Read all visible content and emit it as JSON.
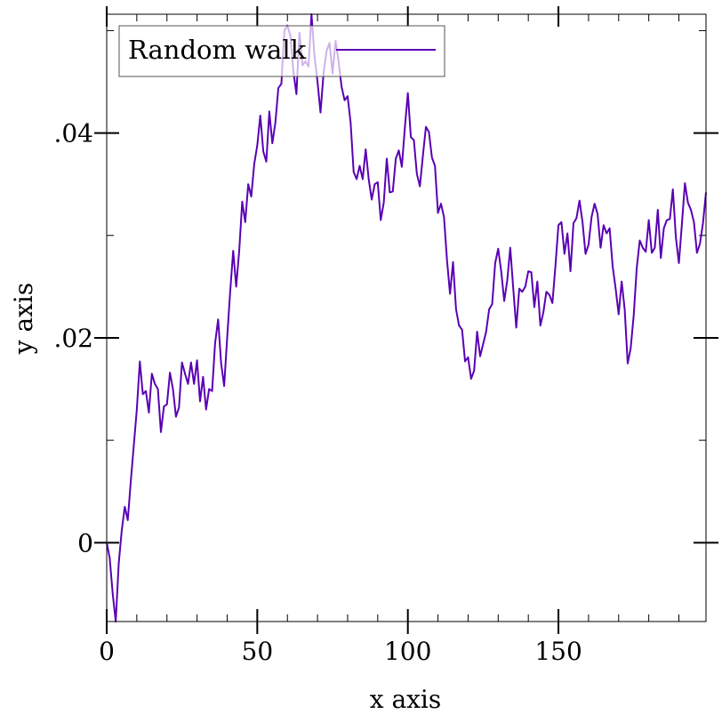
{
  "chart_data": {
    "type": "line",
    "title": "",
    "xlabel": "x axis",
    "ylabel": "y axis",
    "xlim": [
      0,
      199
    ],
    "ylim": [
      -0.0077,
      0.0516
    ],
    "grid": false,
    "legend": {
      "placement": "top-left",
      "entries": [
        "Random walk"
      ]
    },
    "x_ticks": [
      {
        "value": 0,
        "label": "0"
      },
      {
        "value": 50,
        "label": "50"
      },
      {
        "value": 100,
        "label": "100"
      },
      {
        "value": 150,
        "label": "150"
      }
    ],
    "y_ticks": [
      {
        "value": 0,
        "label": "0"
      },
      {
        "value": 0.02,
        "label": ".02"
      },
      {
        "value": 0.04,
        "label": ".04"
      }
    ],
    "series": [
      {
        "name": "Random walk",
        "color": "#5a00b4",
        "x": [
          0,
          1,
          2,
          3,
          4,
          5,
          6,
          7,
          8,
          9,
          10,
          11,
          12,
          13,
          14,
          15,
          16,
          17,
          18,
          19,
          20,
          21,
          22,
          23,
          24,
          25,
          26,
          27,
          28,
          29,
          30,
          31,
          32,
          33,
          34,
          35,
          36,
          37,
          38,
          39,
          40,
          41,
          42,
          43,
          44,
          45,
          46,
          47,
          48,
          49,
          50,
          51,
          52,
          53,
          54,
          55,
          56,
          57,
          58,
          59,
          60,
          61,
          62,
          63,
          64,
          65,
          66,
          67,
          68,
          69,
          70,
          71,
          72,
          73,
          74,
          75,
          76,
          77,
          78,
          79,
          80,
          81,
          82,
          83,
          84,
          85,
          86,
          87,
          88,
          89,
          90,
          91,
          92,
          93,
          94,
          95,
          96,
          97,
          98,
          99,
          100,
          101,
          102,
          103,
          104,
          105,
          106,
          107,
          108,
          109,
          110,
          111,
          112,
          113,
          114,
          115,
          116,
          117,
          118,
          119,
          120,
          121,
          122,
          123,
          124,
          125,
          126,
          127,
          128,
          129,
          130,
          131,
          132,
          133,
          134,
          135,
          136,
          137,
          138,
          139,
          140,
          141,
          142,
          143,
          144,
          145,
          146,
          147,
          148,
          149,
          150,
          151,
          152,
          153,
          154,
          155,
          156,
          157,
          158,
          159,
          160,
          161,
          162,
          163,
          164,
          165,
          166,
          167,
          168,
          169,
          170,
          171,
          172,
          173,
          174,
          175,
          176,
          177,
          178,
          179,
          180,
          181,
          182,
          183,
          184,
          185,
          186,
          187,
          188,
          189,
          190,
          191,
          192,
          193,
          194,
          195,
          196,
          197,
          198,
          199
        ],
        "y": [
          0.0,
          -0.0015,
          -0.005,
          -0.0077,
          -0.002,
          0.0012,
          0.0035,
          0.0022,
          0.006,
          0.0095,
          0.013,
          0.0177,
          0.0145,
          0.0148,
          0.0127,
          0.0165,
          0.0155,
          0.015,
          0.0108,
          0.0133,
          0.0135,
          0.0166,
          0.015,
          0.0123,
          0.0132,
          0.0176,
          0.0165,
          0.0155,
          0.0176,
          0.0155,
          0.0178,
          0.0138,
          0.0162,
          0.013,
          0.015,
          0.0148,
          0.0195,
          0.0218,
          0.0175,
          0.0153,
          0.02,
          0.0245,
          0.0285,
          0.025,
          0.0285,
          0.0333,
          0.0313,
          0.035,
          0.0338,
          0.037,
          0.0388,
          0.0417,
          0.0382,
          0.0372,
          0.0421,
          0.039,
          0.041,
          0.0444,
          0.0448,
          0.05,
          0.0505,
          0.0495,
          0.046,
          0.0438,
          0.0498,
          0.0466,
          0.047,
          0.0465,
          0.0516,
          0.0475,
          0.045,
          0.042,
          0.0458,
          0.048,
          0.0488,
          0.0458,
          0.049,
          0.047,
          0.0445,
          0.0432,
          0.0436,
          0.041,
          0.0362,
          0.0355,
          0.0368,
          0.0355,
          0.0384,
          0.0355,
          0.0335,
          0.035,
          0.0352,
          0.0315,
          0.0332,
          0.0375,
          0.0342,
          0.0343,
          0.0375,
          0.0383,
          0.0367,
          0.0405,
          0.0439,
          0.0396,
          0.0393,
          0.036,
          0.0348,
          0.0378,
          0.0406,
          0.0401,
          0.0376,
          0.0368,
          0.0322,
          0.0331,
          0.0318,
          0.0276,
          0.0243,
          0.0274,
          0.0228,
          0.0212,
          0.0208,
          0.0177,
          0.0181,
          0.016,
          0.0168,
          0.0206,
          0.0182,
          0.0194,
          0.0206,
          0.0228,
          0.0233,
          0.0273,
          0.0287,
          0.0265,
          0.0236,
          0.0256,
          0.0288,
          0.0248,
          0.021,
          0.0248,
          0.0245,
          0.025,
          0.0265,
          0.0264,
          0.023,
          0.0255,
          0.0212,
          0.0225,
          0.0245,
          0.0242,
          0.0234,
          0.027,
          0.031,
          0.0313,
          0.0282,
          0.0302,
          0.0265,
          0.0312,
          0.0317,
          0.0334,
          0.0313,
          0.0282,
          0.0291,
          0.0318,
          0.0331,
          0.0321,
          0.0288,
          0.031,
          0.0302,
          0.0307,
          0.027,
          0.0248,
          0.0223,
          0.0255,
          0.0228,
          0.0175,
          0.019,
          0.0222,
          0.0268,
          0.0295,
          0.0288,
          0.0284,
          0.0315,
          0.0283,
          0.0288,
          0.0325,
          0.0278,
          0.0307,
          0.0315,
          0.0316,
          0.0345,
          0.0298,
          0.0273,
          0.0311,
          0.0351,
          0.0332,
          0.0325,
          0.0313,
          0.0283,
          0.0292,
          0.0312,
          0.0342
        ]
      }
    ]
  }
}
